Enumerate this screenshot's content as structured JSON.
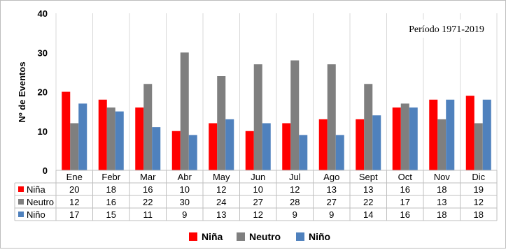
{
  "chart_data": {
    "type": "bar",
    "annotation": "Período 1971-2019",
    "ylabel": "Nº de Eventos",
    "xlabel": "",
    "ylim": [
      0,
      40
    ],
    "y_ticks": [
      0,
      10,
      20,
      30,
      40
    ],
    "grid": "vertical lines between categories",
    "legend_position": "bottom",
    "categories": [
      "Ene",
      "Febr",
      "Mar",
      "Abr",
      "May",
      "Jun",
      "Jul",
      "Ago",
      "Sept",
      "Oct",
      "Nov",
      "Dic"
    ],
    "series": [
      {
        "name": "Niña",
        "color": "#ff0000",
        "values": [
          20,
          18,
          16,
          10,
          12,
          10,
          12,
          13,
          13,
          16,
          18,
          19
        ]
      },
      {
        "name": "Neutro",
        "color": "#7f7f7f",
        "values": [
          12,
          16,
          22,
          30,
          24,
          27,
          28,
          27,
          22,
          17,
          13,
          12
        ]
      },
      {
        "name": "Niño",
        "color": "#4f81bd",
        "values": [
          17,
          15,
          11,
          9,
          13,
          12,
          9,
          9,
          14,
          16,
          18,
          18
        ]
      }
    ],
    "data_table": true
  }
}
